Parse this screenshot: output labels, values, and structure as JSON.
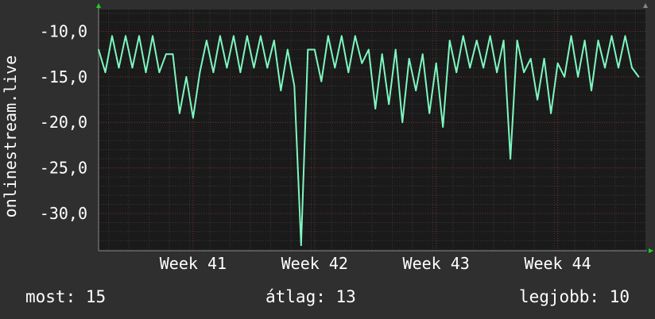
{
  "chart_data": {
    "type": "line",
    "ylabel": "onlinestream.live",
    "yticks": [
      "-10,0",
      "-15,0",
      "-20,0",
      "-25,0",
      "-30,0"
    ],
    "ytick_values": [
      -10,
      -15,
      -20,
      -25,
      -30
    ],
    "ylim": [
      -34.1,
      -7.6
    ],
    "xlim": [
      0,
      40.5
    ],
    "xticks": [
      "Week 41",
      "Week 42",
      "Week 43",
      "Week 44"
    ],
    "xtick_values": [
      7,
      16,
      25,
      34
    ],
    "grid": true,
    "series": [
      {
        "color": "#7ef7c0",
        "x": [
          0.0,
          0.5,
          1.0,
          1.5,
          2.0,
          2.5,
          3.0,
          3.5,
          4.0,
          4.5,
          5.0,
          5.5,
          6.0,
          6.5,
          7.0,
          7.5,
          8.0,
          8.5,
          9.0,
          9.5,
          10.0,
          10.5,
          11.0,
          11.5,
          12.0,
          12.5,
          13.0,
          13.5,
          14.0,
          14.5,
          15.0,
          15.5,
          16.0,
          16.5,
          17.0,
          17.5,
          18.0,
          18.5,
          19.0,
          19.5,
          20.0,
          20.5,
          21.0,
          21.5,
          22.0,
          22.5,
          23.0,
          23.5,
          24.0,
          24.5,
          25.0,
          25.5,
          26.0,
          26.5,
          27.0,
          27.5,
          28.0,
          28.5,
          29.0,
          29.5,
          30.0,
          30.5,
          31.0,
          31.5,
          32.0,
          32.5,
          33.0,
          33.5,
          34.0,
          34.5,
          35.0,
          35.5,
          36.0,
          36.5,
          37.0,
          37.5,
          38.0,
          38.5,
          39.0,
          39.5,
          40.0
        ],
        "y": [
          -12.0,
          -14.5,
          -10.5,
          -14.0,
          -10.5,
          -14.0,
          -10.5,
          -14.5,
          -10.5,
          -14.5,
          -12.5,
          -12.5,
          -19.0,
          -15.0,
          -19.5,
          -14.5,
          -11.0,
          -14.5,
          -10.5,
          -14.0,
          -10.5,
          -14.5,
          -10.5,
          -14.0,
          -10.5,
          -14.0,
          -11.0,
          -16.5,
          -12.0,
          -16.0,
          -33.5,
          -12.0,
          -12.0,
          -15.5,
          -10.5,
          -14.0,
          -10.5,
          -14.5,
          -10.5,
          -13.5,
          -12.0,
          -18.5,
          -12.5,
          -18.0,
          -12.0,
          -20.0,
          -13.0,
          -16.5,
          -12.5,
          -19.0,
          -13.5,
          -20.5,
          -11.0,
          -14.5,
          -10.5,
          -14.0,
          -11.0,
          -14.0,
          -10.5,
          -14.5,
          -11.0,
          -24.0,
          -11.0,
          -14.5,
          -13.0,
          -17.5,
          -13.0,
          -19.0,
          -13.5,
          -15.0,
          -10.5,
          -15.0,
          -11.0,
          -16.5,
          -11.0,
          -14.0,
          -10.5,
          -14.0,
          -10.5,
          -14.0,
          -15.0
        ]
      }
    ]
  },
  "stats": {
    "current": "most: 15",
    "average": "átlag: 13",
    "best": "legjobb: 10"
  },
  "colors": {
    "background": "#2f2f2f",
    "plot_background": "#1a1a1a",
    "line": "#7ef7c0",
    "grid_minor": "#3a3a3a",
    "grid_major": "#7a2f2f",
    "axis_arrow": "#1ed11e"
  }
}
